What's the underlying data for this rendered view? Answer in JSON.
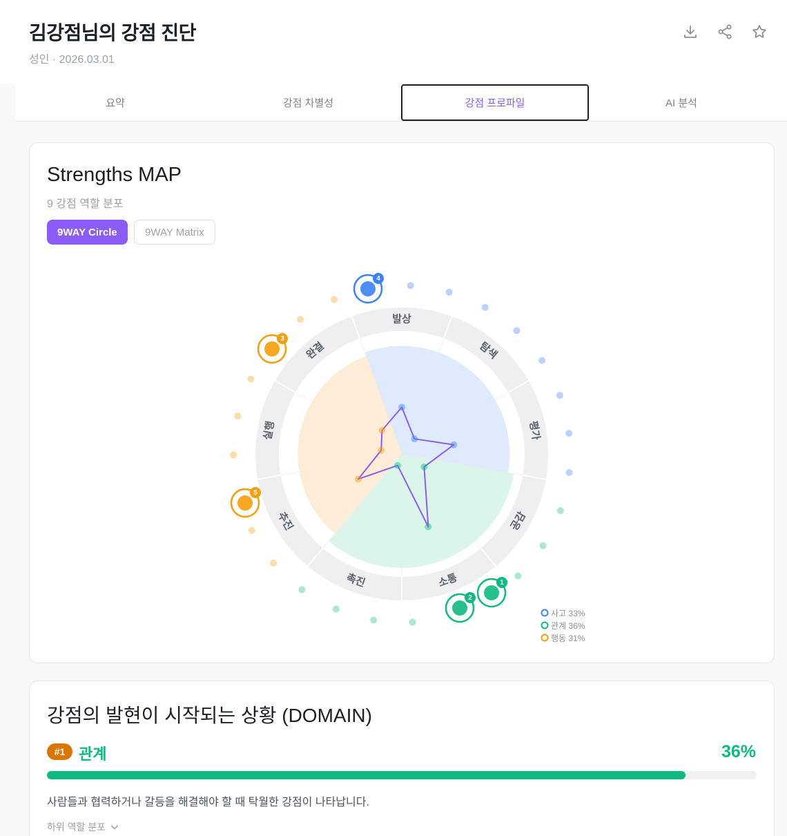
{
  "header": {
    "title": "김강점님의 강점 진단",
    "subtitle": "성인 · 2026.03.01",
    "icons": [
      "download-icon",
      "share-icon",
      "star-icon"
    ]
  },
  "tabs": [
    {
      "label": "요약",
      "active": false
    },
    {
      "label": "강점 차별성",
      "active": false
    },
    {
      "label": "강점 프로파일",
      "active": true
    },
    {
      "label": "AI 분석",
      "active": false
    }
  ],
  "map": {
    "title": "Strengths MAP",
    "subtitle": "9 강점 역할 분포",
    "toggle": [
      "9WAY Circle",
      "9WAY Matrix"
    ],
    "selected": "9WAY Circle"
  },
  "chart_data": {
    "type": "radar",
    "axes": [
      "발상",
      "탐색",
      "평가",
      "공감",
      "소통",
      "촉진",
      "추진",
      "실행",
      "완결"
    ],
    "values": [
      0.38,
      0.16,
      0.43,
      0.21,
      0.63,
      0.1,
      0.41,
      0.17,
      0.25
    ],
    "series_color": "#8b5cf6",
    "domains": [
      {
        "name": "사고",
        "percent": "33%",
        "color": "#3b82f6",
        "fill": "#dbe6fd",
        "axes": [
          "발상",
          "탐색",
          "평가"
        ]
      },
      {
        "name": "관계",
        "percent": "36%",
        "color": "#10b981",
        "fill": "#d6f3e7",
        "axes": [
          "공감",
          "소통",
          "촉진"
        ]
      },
      {
        "name": "행동",
        "percent": "31%",
        "color": "#f59e0b",
        "fill": "#fde9cf",
        "axes": [
          "추진",
          "실행",
          "완결"
        ]
      }
    ],
    "legend": [
      {
        "label": "사고 33%",
        "color": "#3b82f6"
      },
      {
        "label": "관계 36%",
        "color": "#10b981"
      },
      {
        "label": "행동 31%",
        "color": "#f59e0b"
      }
    ],
    "top_badges": [
      {
        "rank": "1",
        "icon": "team-icon",
        "color": "#10b981"
      },
      {
        "rank": "2",
        "icon": "checklist-icon",
        "color": "#10b981"
      },
      {
        "rank": "3",
        "icon": "flag-icon",
        "color": "#f59e0b"
      },
      {
        "rank": "4",
        "icon": "lightning-icon",
        "color": "#3b82f6"
      },
      {
        "rank": "5",
        "icon": "target-icon",
        "color": "#f59e0b"
      }
    ]
  },
  "domain_section": {
    "title": "강점의 발현이 시작되는 상황 (DOMAIN)",
    "rank_label": "#1",
    "top_domain": "관계",
    "top_percent_label": "36%",
    "top_percent": 0.9,
    "description": "사람들과 협력하거나 갈등을 해결해야 할 때 탁월한 강점이 나타납니다.",
    "more_label": "하위 역할 분포"
  }
}
